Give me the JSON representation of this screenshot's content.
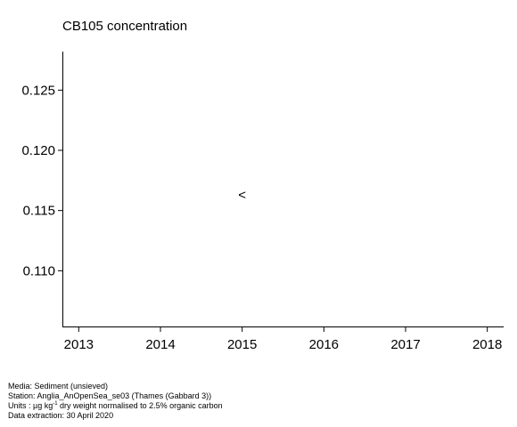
{
  "chart_data": {
    "type": "scatter",
    "title": "CB105 concentration",
    "xlabel": "",
    "ylabel": "",
    "x_ticks": [
      2013,
      2014,
      2015,
      2016,
      2017,
      2018
    ],
    "x_tick_labels": [
      "2013",
      "2014",
      "2015",
      "2016",
      "2017",
      "2018"
    ],
    "y_ticks": [
      0.11,
      0.115,
      0.12,
      0.125
    ],
    "y_tick_labels": [
      "0.110",
      "0.115",
      "0.120",
      "0.125"
    ],
    "xlim": [
      2012.8,
      2018.2
    ],
    "ylim": [
      0.1053,
      0.1282
    ],
    "grid": false,
    "series": [
      {
        "points": [
          {
            "x": 2015,
            "y": 0.1163,
            "marker": "<"
          }
        ]
      }
    ]
  },
  "footnotes": {
    "media": "Media: Sediment (unsieved)",
    "station": "Station: Anglia_AnOpenSea_se03 (Thames (Gabbard 3))",
    "units_prefix": "Units : µg kg",
    "units_sup": "-1",
    "units_suffix": " dry weight normalised to 2.5% organic carbon",
    "extraction": "Data extraction: 30 April 2020"
  }
}
